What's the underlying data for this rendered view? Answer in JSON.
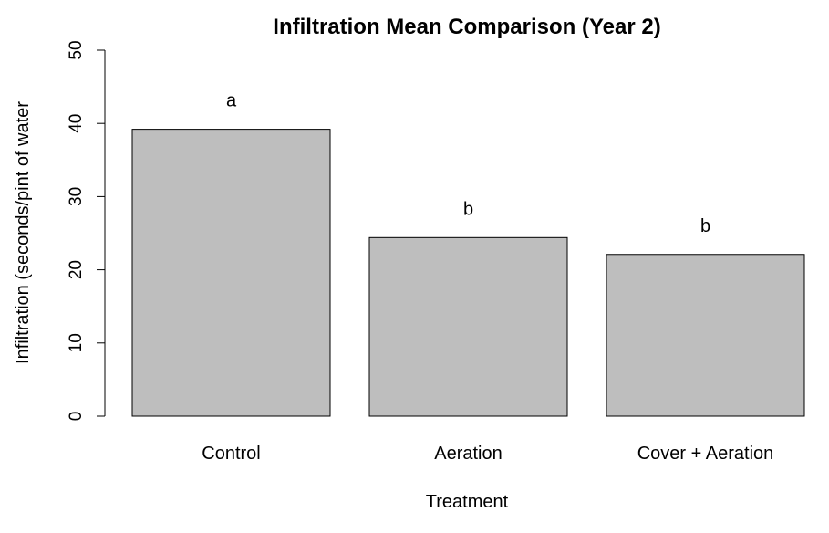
{
  "chart_data": {
    "type": "bar",
    "title": "Infiltration Mean Comparison (Year 2)",
    "xlabel": "Treatment",
    "ylabel": "Infiltration (seconds/pint of water",
    "categories": [
      "Control",
      "Aeration",
      "Cover + Aeration"
    ],
    "values": [
      39.2,
      24.4,
      22.1
    ],
    "annotations": [
      "a",
      "b",
      "b"
    ],
    "ylim": [
      0,
      50
    ],
    "yticks": [
      0,
      10,
      20,
      30,
      40,
      50
    ],
    "ytick_labels": [
      "0",
      "10",
      "20",
      "30",
      "40",
      "50"
    ],
    "bar_color": "#bebebe",
    "grid": false,
    "legend": "none"
  }
}
